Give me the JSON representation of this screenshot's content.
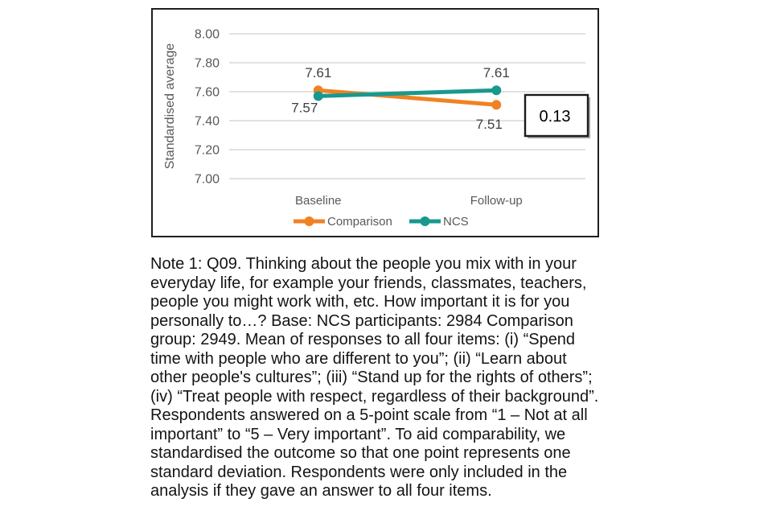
{
  "chart_data": {
    "type": "line",
    "categories": [
      "Baseline",
      "Follow-up"
    ],
    "series": [
      {
        "name": "Comparison",
        "color": "#F08223",
        "values": [
          7.61,
          7.51
        ],
        "data_labels": [
          "7.61",
          "7.51"
        ],
        "label_positions": [
          "above",
          "below"
        ]
      },
      {
        "name": "NCS",
        "color": "#17998E",
        "values": [
          7.57,
          7.61
        ],
        "data_labels": [
          "7.57",
          "7.61"
        ],
        "label_positions": [
          "below-left",
          "above"
        ]
      }
    ],
    "title": "",
    "xlabel": "",
    "ylabel": "Standardised average",
    "ylim": [
      7.0,
      8.0
    ],
    "yticks": [
      "7.00",
      "7.20",
      "7.40",
      "7.60",
      "7.80",
      "8.00"
    ],
    "grid": true,
    "legend_position": "bottom",
    "annotation": {
      "text": "0.13"
    },
    "colors": {
      "gridline": "#D9D9D9",
      "axis_text": "#595959",
      "data_label": "#404040",
      "annotation_border": "#1a1a1a",
      "annotation_shadow": "#a6a6a6"
    }
  },
  "note": {
    "text": "Note 1: Q09. Thinking about the people you mix with in your everyday life, for example your friends, classmates, teachers, people you might work with, etc. How important it is for you personally to…? Base: NCS participants: 2984 Comparison group: 2949. Mean of responses to all four items: (i) “Spend time with people who are different to you”; (ii) “Learn about other people's cultures”; (iii) “Stand up for the rights of others”; (iv) “Treat people with respect, regardless of their background”. Respondents answered on a 5-point scale from “1 – Not at all important” to “5 – Very important”. To aid comparability, we standardised the outcome so that one point represents one standard deviation. Respondents were only included in the analysis if they gave an answer to all four items."
  }
}
